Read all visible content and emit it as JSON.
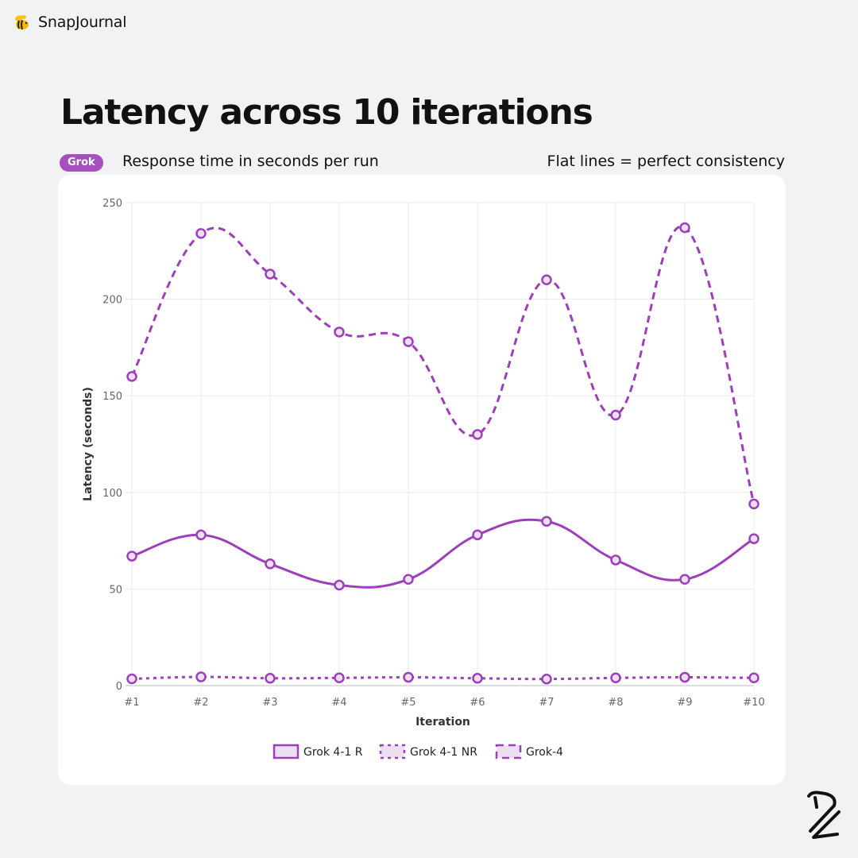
{
  "brand": {
    "name": "SnapJournal",
    "icon": "bee-icon"
  },
  "header": {
    "title": "Latency across 10 iterations",
    "badge": "Grok",
    "subtitle": "Response time in seconds per run",
    "note": "Flat lines = perfect consistency"
  },
  "colors": {
    "accent": "#9c3fb8",
    "badge": "#a550be",
    "marker_fill": "#ecdff2",
    "grid": "#ececec"
  },
  "chart_data": {
    "type": "line",
    "title": "",
    "xlabel": "Iteration",
    "ylabel": "Latency (seconds)",
    "x": [
      "#1",
      "#2",
      "#3",
      "#4",
      "#5",
      "#6",
      "#7",
      "#8",
      "#9",
      "#10"
    ],
    "ylim": [
      0,
      250
    ],
    "yticks": [
      0,
      50,
      100,
      150,
      200,
      250
    ],
    "grid": true,
    "legend_position": "bottom",
    "series": [
      {
        "name": "Grok 4-1 R",
        "style": "solid",
        "values": [
          67,
          78,
          63,
          52,
          55,
          78,
          85,
          65,
          55,
          76
        ]
      },
      {
        "name": "Grok 4-1 NR",
        "style": "dotted",
        "values": [
          3.5,
          4.5,
          3.8,
          4,
          4.3,
          3.8,
          3.4,
          4,
          4.3,
          4
        ]
      },
      {
        "name": "Grok-4",
        "style": "dashed",
        "values": [
          160,
          234,
          213,
          183,
          178,
          130,
          210,
          140,
          237,
          94
        ]
      }
    ]
  }
}
